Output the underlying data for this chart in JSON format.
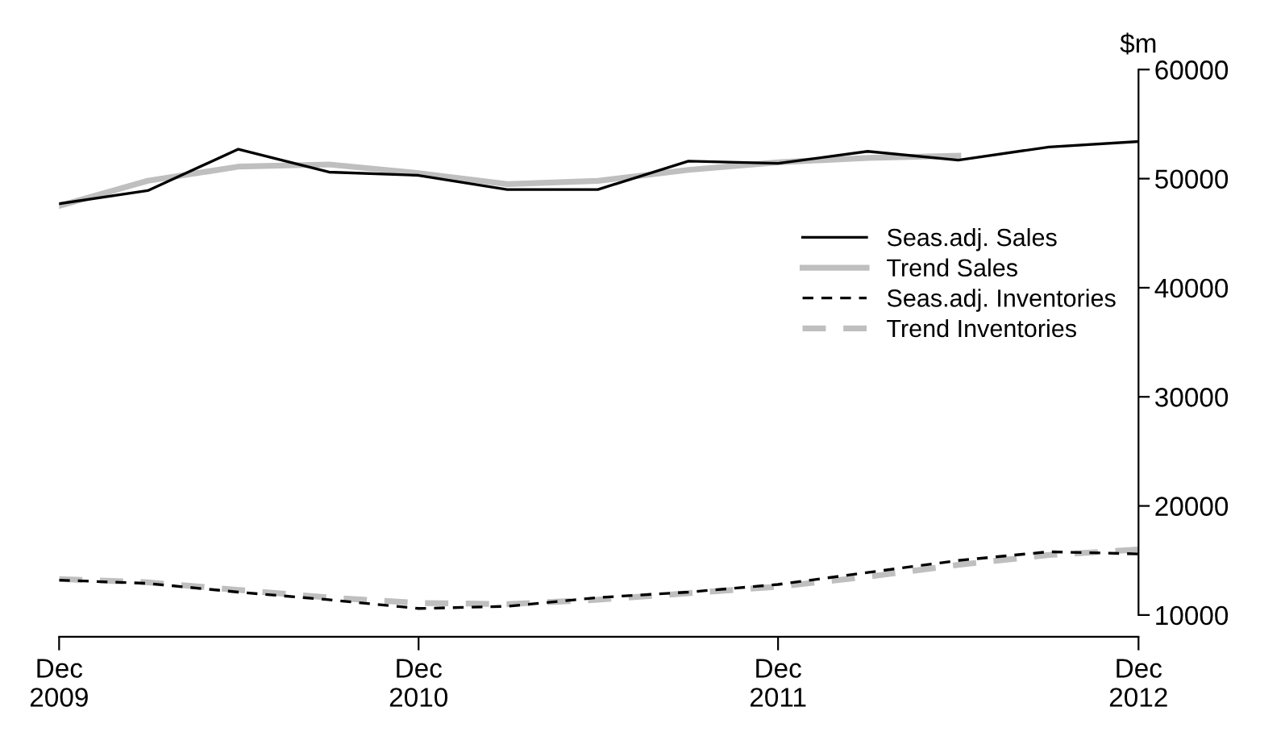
{
  "chart_data": {
    "type": "line",
    "ylabel": "$m",
    "x": [
      "2009-12",
      "2010-03",
      "2010-06",
      "2010-09",
      "2010-12",
      "2011-03",
      "2011-06",
      "2011-09",
      "2011-12",
      "2012-03",
      "2012-06",
      "2012-09",
      "2012-12"
    ],
    "series": [
      {
        "name": "Seas.adj. Sales",
        "color": "#000000",
        "line_style": "solid",
        "values": [
          47700,
          48900,
          52700,
          50600,
          50300,
          49000,
          49000,
          51600,
          51400,
          52500,
          51700,
          52900,
          53400
        ]
      },
      {
        "name": "Trend Sales",
        "color": "#bfbfbf",
        "line_style": "solid",
        "values": [
          47500,
          49800,
          51100,
          51300,
          50500,
          49500,
          49800,
          50800,
          51500,
          51900,
          52100,
          null,
          null
        ]
      },
      {
        "name": "Seas.adj. Inventories",
        "color": "#000000",
        "line_style": "dashed",
        "values": [
          13200,
          12900,
          12100,
          11400,
          10600,
          10800,
          11600,
          12100,
          12800,
          13900,
          15000,
          15800,
          15600
        ]
      },
      {
        "name": "Trend Inventories",
        "color": "#bfbfbf",
        "line_style": "dashed",
        "values": [
          13300,
          13000,
          12300,
          11600,
          11100,
          11000,
          11400,
          12000,
          12600,
          13500,
          14600,
          15500,
          16000
        ]
      }
    ],
    "xlim": [
      "2009-12",
      "2012-12"
    ],
    "xticks": [
      {
        "value": "2009-12",
        "label": "Dec\n2009"
      },
      {
        "value": "2010-12",
        "label": "Dec\n2010"
      },
      {
        "value": "2011-12",
        "label": "Dec\n2011"
      },
      {
        "value": "2012-12",
        "label": "Dec\n2012"
      }
    ],
    "ylim": [
      8000,
      60000
    ],
    "yticks": [
      10000,
      20000,
      30000,
      40000,
      50000,
      60000
    ],
    "grid": false,
    "legend": "right",
    "marker": "none"
  }
}
